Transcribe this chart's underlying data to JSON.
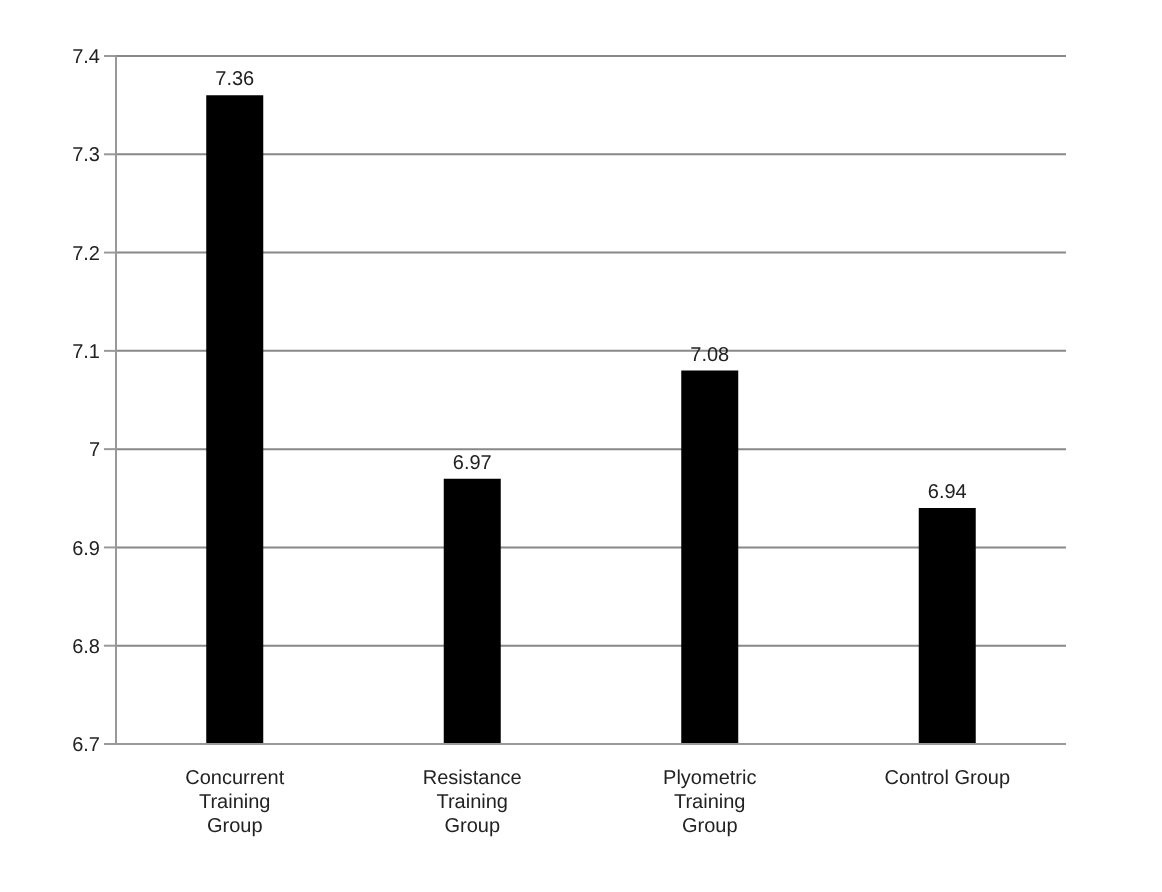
{
  "chart_data": {
    "type": "bar",
    "categories": [
      "Concurrent Training Group",
      "Resistance Training Group",
      "Plyometric Training Group",
      "Control Group"
    ],
    "values": [
      7.36,
      6.97,
      7.08,
      6.94
    ],
    "color": "#000000",
    "ylim": [
      6.7,
      7.4
    ],
    "yticks": [
      6.7,
      6.8,
      6.9,
      7,
      7.1,
      7.2,
      7.3,
      7.4
    ],
    "grid": "y",
    "data_labels": true
  }
}
